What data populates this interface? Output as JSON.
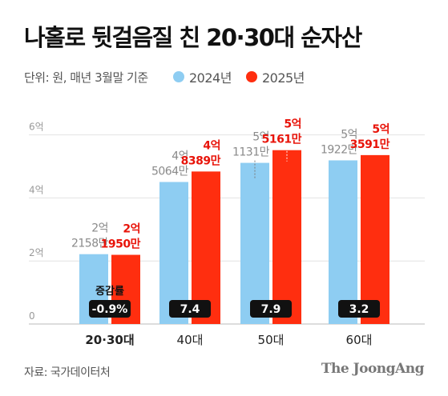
{
  "title": "나홀로 뒷걸음질 친 20·30대 순자산",
  "subtitle": "단위: 원, 매년 3월말 기준",
  "legend": [
    {
      "label": "2024년",
      "color": "#8ecdf2"
    },
    {
      "label": "2025년",
      "color": "#ff2e0f"
    }
  ],
  "change_label": "증감률",
  "source": "자료: 국가데이터처",
  "brand": "The JoongAng",
  "chart_data": {
    "type": "bar",
    "categories": [
      "20·30대",
      "40대",
      "50대",
      "60대"
    ],
    "highlight_category": "20·30대",
    "y_ticks": [
      {
        "value": 0,
        "label": "0"
      },
      {
        "value": 2,
        "label": "2억"
      },
      {
        "value": 4,
        "label": "4억"
      },
      {
        "value": 6,
        "label": "6억"
      }
    ],
    "ylim": [
      0,
      6.6
    ],
    "grid": true,
    "series": [
      {
        "name": "2024년",
        "color": "#8ecdf2",
        "label_color": "#8a8a8a",
        "values": [
          2.2158,
          4.5064,
          5.1131,
          5.1922
        ],
        "labels": [
          [
            "2억",
            "2158만"
          ],
          [
            "4억",
            "5064만"
          ],
          [
            "5억",
            "1131만"
          ],
          [
            "5억",
            "1922만"
          ]
        ]
      },
      {
        "name": "2025년",
        "color": "#ff2e0f",
        "label_color": "#e8140a",
        "values": [
          2.195,
          4.8389,
          5.5161,
          5.3591
        ],
        "labels": [
          [
            "2억",
            "1950만"
          ],
          [
            "4억",
            "8389만"
          ],
          [
            "5억",
            "5161만"
          ],
          [
            "5억",
            "3591만"
          ]
        ]
      }
    ],
    "change_rates": [
      "-0.9%",
      "7.4",
      "7.9",
      "3.2"
    ]
  }
}
